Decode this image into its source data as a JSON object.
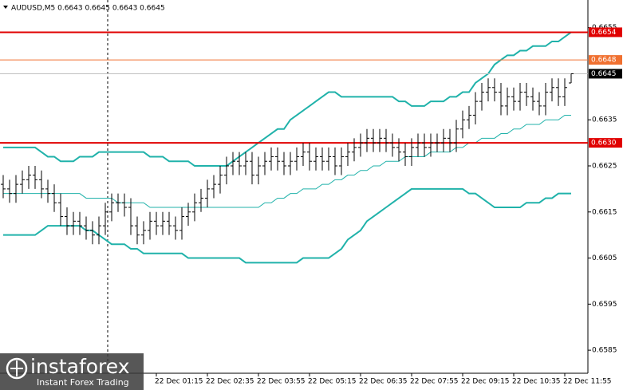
{
  "chart_data": {
    "type": "ohlc",
    "title": "AUDUSD,M5  0.6643 0.6645 0.6643 0.6645",
    "color": "#000000",
    "categories": [
      null,
      null,
      null,
      null,
      null,
      null,
      null,
      null,
      null,
      null,
      null,
      null,
      null,
      null,
      null,
      null,
      null,
      null,
      null,
      null,
      null,
      null,
      null,
      null,
      "22 Dec 01:15",
      null,
      null,
      null,
      null,
      null,
      null,
      null,
      "22 Dec 02:35",
      null,
      null,
      null,
      null,
      null,
      null,
      null,
      "22 Dec 03:55",
      null,
      null,
      null,
      null,
      null,
      null,
      null,
      "22 Dec 05:15",
      null,
      null,
      null,
      null,
      null,
      null,
      null,
      "22 Dec 06:35",
      null,
      null,
      null,
      null,
      null,
      null,
      null,
      "22 Dec 07:55",
      null,
      null,
      null,
      null,
      null,
      null,
      null,
      "22 Dec 09:15",
      null,
      null,
      null,
      null,
      null,
      null,
      null,
      "22 Dec 10:35",
      null,
      null,
      null,
      null,
      null,
      null,
      null,
      "22 Dec 11:55",
      null
    ],
    "open": [
      0.6621,
      0.662,
      0.6619,
      0.6621,
      0.6622,
      0.6623,
      0.6622,
      0.662,
      0.6619,
      0.6617,
      0.6614,
      0.6612,
      0.6613,
      0.6612,
      0.6611,
      0.661,
      0.6612,
      0.6615,
      0.6617,
      0.6617,
      0.6616,
      0.6612,
      0.661,
      0.6611,
      0.6613,
      0.6612,
      0.6613,
      0.6612,
      0.6611,
      0.6614,
      0.6615,
      0.6617,
      0.6618,
      0.662,
      0.6621,
      0.6623,
      0.6625,
      0.6626,
      0.6625,
      0.6626,
      0.6623,
      0.6625,
      0.6626,
      0.6627,
      0.6626,
      0.6625,
      0.6626,
      0.6627,
      0.6628,
      0.6626,
      0.6627,
      0.6626,
      0.6627,
      0.6625,
      0.6627,
      0.6628,
      0.6629,
      0.663,
      0.6631,
      0.663,
      0.6631,
      0.663,
      0.6629,
      0.6628,
      0.6627,
      0.6629,
      0.663,
      0.6629,
      0.663,
      0.663,
      0.6631,
      0.663,
      0.6633,
      0.6635,
      0.6636,
      0.6639,
      0.6641,
      0.6642,
      0.6641,
      0.6638,
      0.664,
      0.6639,
      0.6641,
      0.664,
      0.6639,
      0.6638,
      0.6641,
      0.6642,
      0.664,
      0.6643
    ],
    "high": [
      0.6623,
      0.6622,
      0.6623,
      0.6624,
      0.6625,
      0.6625,
      0.6624,
      0.6622,
      0.6621,
      0.6619,
      0.6616,
      0.6615,
      0.6615,
      0.6614,
      0.6613,
      0.6614,
      0.6617,
      0.6619,
      0.6619,
      0.6619,
      0.6618,
      0.6614,
      0.6613,
      0.6615,
      0.6615,
      0.6615,
      0.6615,
      0.6614,
      0.6616,
      0.6617,
      0.6619,
      0.662,
      0.6622,
      0.6623,
      0.6625,
      0.6627,
      0.6628,
      0.6628,
      0.6628,
      0.6628,
      0.6627,
      0.6628,
      0.6629,
      0.6629,
      0.6628,
      0.6628,
      0.6629,
      0.663,
      0.663,
      0.6629,
      0.6629,
      0.6629,
      0.6629,
      0.6629,
      0.663,
      0.6631,
      0.6632,
      0.6633,
      0.6633,
      0.6633,
      0.6633,
      0.6632,
      0.6631,
      0.663,
      0.6631,
      0.6632,
      0.6632,
      0.6632,
      0.6632,
      0.6633,
      0.6633,
      0.6635,
      0.6637,
      0.6638,
      0.6641,
      0.6643,
      0.6644,
      0.6644,
      0.6643,
      0.6642,
      0.6642,
      0.6643,
      0.6643,
      0.6642,
      0.6641,
      0.6643,
      0.6644,
      0.6644,
      0.6644,
      0.6645
    ],
    "low": [
      0.6618,
      0.6617,
      0.6617,
      0.6619,
      0.662,
      0.662,
      0.6618,
      0.6617,
      0.6615,
      0.6612,
      0.661,
      0.661,
      0.661,
      0.6609,
      0.6608,
      0.6608,
      0.661,
      0.6613,
      0.6615,
      0.6614,
      0.661,
      0.6608,
      0.6608,
      0.6609,
      0.661,
      0.661,
      0.661,
      0.6609,
      0.6609,
      0.6612,
      0.6613,
      0.6615,
      0.6616,
      0.6618,
      0.6619,
      0.6621,
      0.6623,
      0.6623,
      0.6623,
      0.6621,
      0.6621,
      0.6623,
      0.6624,
      0.6624,
      0.6623,
      0.6623,
      0.6624,
      0.6625,
      0.6624,
      0.6624,
      0.6624,
      0.6624,
      0.6623,
      0.6623,
      0.6625,
      0.6626,
      0.6627,
      0.6628,
      0.6628,
      0.6628,
      0.6628,
      0.6627,
      0.6626,
      0.6625,
      0.6625,
      0.6627,
      0.6627,
      0.6627,
      0.6628,
      0.6628,
      0.6628,
      0.6628,
      0.6631,
      0.6633,
      0.6634,
      0.6637,
      0.6639,
      0.6639,
      0.6636,
      0.6636,
      0.6637,
      0.6637,
      0.6638,
      0.6637,
      0.6636,
      0.6636,
      0.6639,
      0.6638,
      0.6638,
      0.6643
    ],
    "close": [
      0.662,
      0.6619,
      0.6621,
      0.6622,
      0.6623,
      0.6622,
      0.662,
      0.6619,
      0.6617,
      0.6614,
      0.6612,
      0.6613,
      0.6612,
      0.6611,
      0.661,
      0.6612,
      0.6615,
      0.6617,
      0.6617,
      0.6616,
      0.6612,
      0.661,
      0.6611,
      0.6613,
      0.6612,
      0.6613,
      0.6612,
      0.6611,
      0.6614,
      0.6615,
      0.6617,
      0.6618,
      0.662,
      0.6621,
      0.6623,
      0.6625,
      0.6626,
      0.6625,
      0.6626,
      0.6623,
      0.6625,
      0.6626,
      0.6627,
      0.6626,
      0.6625,
      0.6626,
      0.6627,
      0.6628,
      0.6626,
      0.6627,
      0.6626,
      0.6627,
      0.6625,
      0.6627,
      0.6628,
      0.6629,
      0.663,
      0.6631,
      0.663,
      0.6631,
      0.663,
      0.6629,
      0.6628,
      0.6627,
      0.6629,
      0.663,
      0.6629,
      0.663,
      0.663,
      0.6631,
      0.663,
      0.6633,
      0.6635,
      0.6636,
      0.6639,
      0.6641,
      0.6642,
      0.6641,
      0.6638,
      0.664,
      0.6639,
      0.6641,
      0.664,
      0.6639,
      0.6638,
      0.6641,
      0.6642,
      0.664,
      0.6642,
      0.6645
    ],
    "bands": [
      {
        "color": "#20b2aa",
        "values": [
          0.6629,
          0.6629,
          0.6629,
          0.6629,
          0.6629,
          0.6629,
          0.6628,
          0.6627,
          0.6627,
          0.6626,
          0.6626,
          0.6626,
          0.6627,
          0.6627,
          0.6627,
          0.6628,
          0.6628,
          0.6628,
          0.6628,
          0.6628,
          0.6628,
          0.6628,
          0.6628,
          0.6627,
          0.6627,
          0.6627,
          0.6626,
          0.6626,
          0.6626,
          0.6626,
          0.6625,
          0.6625,
          0.6625,
          0.6625,
          0.6625,
          0.6625,
          0.6626,
          0.6627,
          0.6628,
          0.6629,
          0.663,
          0.6631,
          0.6632,
          0.6633,
          0.6633,
          0.6635,
          0.6636,
          0.6637,
          0.6638,
          0.6639,
          0.664,
          0.6641,
          0.6641,
          0.664,
          0.664,
          0.664,
          0.664,
          0.664,
          0.664,
          0.664,
          0.664,
          0.664,
          0.6639,
          0.6639,
          0.6638,
          0.6638,
          0.6638,
          0.6639,
          0.6639,
          0.6639,
          0.664,
          0.664,
          0.6641,
          0.6641,
          0.6643,
          0.6644,
          0.6645,
          0.6647,
          0.6648,
          0.6649,
          0.6649,
          0.665,
          0.665,
          0.6651,
          0.6651,
          0.6651,
          0.6652,
          0.6652,
          0.6653,
          0.6654
        ]
      },
      {
        "color": "#20b2aa",
        "values": [
          0.6619,
          0.6619,
          0.6619,
          0.6619,
          0.6619,
          0.6619,
          0.6619,
          0.6619,
          0.6619,
          0.6619,
          0.6619,
          0.6619,
          0.6619,
          0.6618,
          0.6618,
          0.6618,
          0.6618,
          0.6618,
          0.6617,
          0.6617,
          0.6617,
          0.6617,
          0.6617,
          0.6616,
          0.6616,
          0.6616,
          0.6616,
          0.6616,
          0.6616,
          0.6616,
          0.6616,
          0.6616,
          0.6616,
          0.6616,
          0.6616,
          0.6616,
          0.6616,
          0.6616,
          0.6616,
          0.6616,
          0.6616,
          0.6617,
          0.6617,
          0.6618,
          0.6618,
          0.6619,
          0.6619,
          0.662,
          0.662,
          0.662,
          0.6621,
          0.6621,
          0.6622,
          0.6622,
          0.6623,
          0.6623,
          0.6624,
          0.6624,
          0.6625,
          0.6625,
          0.6626,
          0.6626,
          0.6626,
          0.6627,
          0.6627,
          0.6627,
          0.6627,
          0.6628,
          0.6628,
          0.6628,
          0.6628,
          0.6629,
          0.6629,
          0.663,
          0.663,
          0.6631,
          0.6631,
          0.6631,
          0.6632,
          0.6632,
          0.6633,
          0.6633,
          0.6634,
          0.6634,
          0.6634,
          0.6635,
          0.6635,
          0.6635,
          0.6636,
          0.6636
        ]
      },
      {
        "color": "#20b2aa",
        "values": [
          0.661,
          0.661,
          0.661,
          0.661,
          0.661,
          0.661,
          0.6611,
          0.6612,
          0.6612,
          0.6612,
          0.6612,
          0.6612,
          0.6612,
          0.6611,
          0.6611,
          0.661,
          0.6609,
          0.6608,
          0.6608,
          0.6608,
          0.6607,
          0.6607,
          0.6606,
          0.6606,
          0.6606,
          0.6606,
          0.6606,
          0.6606,
          0.6606,
          0.6605,
          0.6605,
          0.6605,
          0.6605,
          0.6605,
          0.6605,
          0.6605,
          0.6605,
          0.6605,
          0.6604,
          0.6604,
          0.6604,
          0.6604,
          0.6604,
          0.6604,
          0.6604,
          0.6604,
          0.6604,
          0.6605,
          0.6605,
          0.6605,
          0.6605,
          0.6605,
          0.6606,
          0.6607,
          0.6609,
          0.661,
          0.6611,
          0.6613,
          0.6614,
          0.6615,
          0.6616,
          0.6617,
          0.6618,
          0.6619,
          0.662,
          0.662,
          0.662,
          0.662,
          0.662,
          0.662,
          0.662,
          0.662,
          0.662,
          0.6619,
          0.6619,
          0.6618,
          0.6617,
          0.6616,
          0.6616,
          0.6616,
          0.6616,
          0.6616,
          0.6617,
          0.6617,
          0.6617,
          0.6618,
          0.6618,
          0.6619,
          0.6619,
          0.6619
        ]
      }
    ],
    "levels": [
      {
        "price": 0.6654,
        "color": "#e00000"
      },
      {
        "price": 0.6648,
        "color": "#f07030"
      },
      {
        "price": {
          "value": 0.663,
          "label": "0.6630"
        },
        "color": "#e00000"
      }
    ],
    "last_price": 0.6645,
    "last_price_color": "#000000",
    "ylim": [
      0.658,
      0.6661
    ],
    "yticks": [
      0.6655,
      0.6635,
      0.6625,
      0.6615,
      0.6605,
      0.6595,
      0.6585
    ],
    "grid": false
  },
  "logo": {
    "name": "instaforex",
    "tagline": "Instant Forex Trading"
  }
}
